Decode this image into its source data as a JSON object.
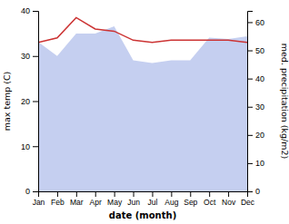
{
  "chart_data": {
    "type": "line",
    "categories": [
      "Jan",
      "Feb",
      "Mar",
      "Apr",
      "May",
      "Jun",
      "Jul",
      "Aug",
      "Sep",
      "Oct",
      "Nov",
      "Dec"
    ],
    "xlabel": "date (month)",
    "ylabel": "max temp (C)",
    "y2label": "med. precipitation (kg/m2)",
    "series": [
      {
        "type": "area",
        "axis": "y2",
        "color": "#c5cff0",
        "values": [
          53.0,
          48.0,
          56.0,
          56.0,
          58.5,
          46.5,
          45.5,
          46.5,
          46.5,
          54.5,
          54.0,
          55.0
        ]
      },
      {
        "type": "line",
        "color": "#cc3333",
        "values": [
          33.0,
          34.0,
          38.5,
          36.0,
          35.5,
          33.5,
          33.0,
          33.5,
          33.5,
          33.5,
          33.5,
          33.0
        ]
      }
    ],
    "ylim": [
      0,
      40
    ],
    "yticks": [
      0,
      10,
      20,
      30,
      40
    ],
    "y2lim": [
      0,
      64
    ],
    "y2ticks": [
      0,
      10,
      20,
      30,
      40,
      50,
      60
    ]
  }
}
